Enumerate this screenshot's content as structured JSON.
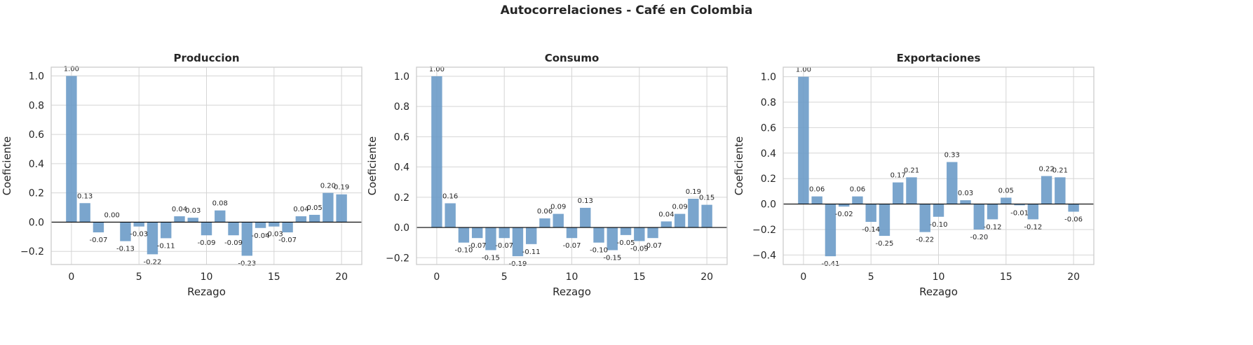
{
  "figure_title": "Autocorrelaciones - Café en Colombia",
  "colors": {
    "bar": "#6b9bc8",
    "grid": "#d5d5d5",
    "frame": "#cccccc",
    "zero_line": "#000000"
  },
  "chart_data": [
    {
      "type": "bar",
      "title": "Produccion",
      "xlabel": "Rezago",
      "ylabel": "Coeficiente",
      "x": [
        0,
        1,
        2,
        3,
        4,
        5,
        6,
        7,
        8,
        9,
        10,
        11,
        12,
        13,
        14,
        15,
        16,
        17,
        18,
        19,
        20
      ],
      "values": [
        1.0,
        0.13,
        -0.07,
        0.0,
        -0.13,
        -0.03,
        -0.22,
        -0.11,
        0.04,
        0.03,
        -0.09,
        0.08,
        -0.09,
        -0.23,
        -0.04,
        -0.03,
        -0.07,
        0.04,
        0.05,
        0.2,
        0.19
      ],
      "labels": [
        "1.00",
        "0.13",
        "-0.07",
        "0.00",
        "-0.13",
        "-0.03",
        "-0.22",
        "-0.11",
        "0.04",
        "0.03",
        "-0.09",
        "0.08",
        "-0.09",
        "-0.23",
        "-0.04",
        "-0.03",
        "-0.07",
        "0.04",
        "0.05",
        "0.20",
        "0.19"
      ],
      "xlim": [
        -1.5,
        21.5
      ],
      "ylim": [
        -0.29,
        1.06
      ],
      "xticks": [
        0,
        5,
        10,
        15,
        20
      ],
      "xtick_labels": [
        "0",
        "5",
        "10",
        "15",
        "20"
      ],
      "yticks": [
        -0.2,
        0.0,
        0.2,
        0.4,
        0.6,
        0.8,
        1.0
      ],
      "ytick_labels": [
        "−0.2",
        "0.0",
        "0.2",
        "0.4",
        "0.6",
        "0.8",
        "1.0"
      ],
      "grid": true
    },
    {
      "type": "bar",
      "title": "Consumo",
      "xlabel": "Rezago",
      "ylabel": "Coeficiente",
      "x": [
        0,
        1,
        2,
        3,
        4,
        5,
        6,
        7,
        8,
        9,
        10,
        11,
        12,
        13,
        14,
        15,
        16,
        17,
        18,
        19,
        20
      ],
      "values": [
        1.0,
        0.16,
        -0.1,
        -0.07,
        -0.15,
        -0.07,
        -0.19,
        -0.11,
        0.06,
        0.09,
        -0.07,
        0.13,
        -0.1,
        -0.15,
        -0.05,
        -0.09,
        -0.07,
        0.04,
        0.09,
        0.19,
        0.15
      ],
      "labels": [
        "1.00",
        "0.16",
        "-0.10",
        "-0.07",
        "-0.15",
        "-0.07",
        "-0.19",
        "-0.11",
        "0.06",
        "0.09",
        "-0.07",
        "0.13",
        "-0.10",
        "-0.15",
        "-0.05",
        "-0.09",
        "-0.07",
        "0.04",
        "0.09",
        "0.19",
        "0.15"
      ],
      "xlim": [
        -1.5,
        21.5
      ],
      "ylim": [
        -0.245,
        1.06
      ],
      "xticks": [
        0,
        5,
        10,
        15,
        20
      ],
      "xtick_labels": [
        "0",
        "5",
        "10",
        "15",
        "20"
      ],
      "yticks": [
        -0.2,
        0.0,
        0.2,
        0.4,
        0.6,
        0.8,
        1.0
      ],
      "ytick_labels": [
        "−0.2",
        "0.0",
        "0.2",
        "0.4",
        "0.6",
        "0.8",
        "1.0"
      ],
      "grid": true
    },
    {
      "type": "bar",
      "title": "Exportaciones",
      "xlabel": "Rezago",
      "ylabel": "Coeficiente",
      "x": [
        0,
        1,
        2,
        3,
        4,
        5,
        6,
        7,
        8,
        9,
        10,
        11,
        12,
        13,
        14,
        15,
        16,
        17,
        18,
        19,
        20
      ],
      "values": [
        1.0,
        0.06,
        -0.41,
        -0.02,
        0.06,
        -0.14,
        -0.25,
        0.17,
        0.21,
        -0.22,
        -0.1,
        0.33,
        0.03,
        -0.2,
        -0.12,
        0.05,
        -0.01,
        -0.12,
        0.22,
        0.21,
        -0.06
      ],
      "labels": [
        "1.00",
        "0.06",
        "-0.41",
        "-0.02",
        "0.06",
        "-0.14",
        "-0.25",
        "0.17",
        "0.21",
        "-0.22",
        "-0.10",
        "0.33",
        "0.03",
        "-0.20",
        "-0.12",
        "0.05",
        "-0.01",
        "-0.12",
        "0.22",
        "0.21",
        "-0.06"
      ],
      "xlim": [
        -1.5,
        21.5
      ],
      "ylim": [
        -0.475,
        1.075
      ],
      "xticks": [
        0,
        5,
        10,
        15,
        20
      ],
      "xtick_labels": [
        "0",
        "5",
        "10",
        "15",
        "20"
      ],
      "yticks": [
        -0.4,
        -0.2,
        0.0,
        0.2,
        0.4,
        0.6,
        0.8,
        1.0
      ],
      "ytick_labels": [
        "−0.4",
        "−0.2",
        "0.0",
        "0.2",
        "0.4",
        "0.6",
        "0.8",
        "1.0"
      ],
      "grid": true
    }
  ]
}
